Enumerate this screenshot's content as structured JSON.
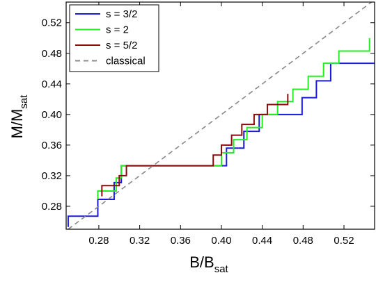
{
  "chart_data": {
    "type": "step-line",
    "x_label": "B/B",
    "x_label_sub": "sat",
    "y_label": "M/M",
    "y_label_sub": "sat",
    "xlim": [
      0.248,
      0.55
    ],
    "ylim": [
      0.25,
      0.547
    ],
    "xticks": [
      0.28,
      0.32,
      0.36,
      {
        "value": 0.4,
        "label": "0.40"
      },
      0.44,
      0.48,
      0.52
    ],
    "yticks": [
      0.28,
      0.32,
      0.36,
      {
        "value": 0.4,
        "label": "0.40"
      },
      0.44,
      0.48,
      0.52
    ],
    "legend": "upper left",
    "series": [
      {
        "name": "s = 3/2",
        "color": "#1a1adc",
        "dash": false,
        "x": [
          0.25,
          0.25,
          0.279,
          0.279,
          0.295,
          0.295,
          0.302,
          0.302,
          0.405,
          0.405,
          0.422,
          0.422,
          0.437,
          0.437,
          0.479,
          0.479,
          0.493,
          0.493,
          0.507,
          0.507,
          0.529,
          0.529,
          0.55
        ],
        "values": [
          0.253,
          0.267,
          0.267,
          0.289,
          0.289,
          0.311,
          0.311,
          0.333,
          0.333,
          0.356,
          0.356,
          0.378,
          0.378,
          0.4,
          0.4,
          0.422,
          0.422,
          0.444,
          0.444,
          0.467,
          0.467,
          0.467,
          0.467
        ]
      },
      {
        "name": "s = 2",
        "color": "#22ee22",
        "dash": false,
        "x": [
          0.279,
          0.279,
          0.297,
          0.297,
          0.302,
          0.302,
          0.4,
          0.4,
          0.412,
          0.412,
          0.425,
          0.425,
          0.44,
          0.44,
          0.455,
          0.455,
          0.47,
          0.47,
          0.485,
          0.485,
          0.5,
          0.5,
          0.515,
          0.515,
          0.53,
          0.53,
          0.545,
          0.545
        ],
        "values": [
          0.289,
          0.3,
          0.3,
          0.317,
          0.317,
          0.333,
          0.333,
          0.35,
          0.35,
          0.367,
          0.367,
          0.383,
          0.383,
          0.4,
          0.4,
          0.417,
          0.417,
          0.433,
          0.433,
          0.45,
          0.45,
          0.467,
          0.467,
          0.483,
          0.483,
          0.483,
          0.483,
          0.5
        ]
      },
      {
        "name": "s = 5/2",
        "color": "#8b0a0a",
        "dash": false,
        "x": [
          0.283,
          0.283,
          0.3,
          0.3,
          0.307,
          0.307,
          0.392,
          0.392,
          0.4,
          0.4,
          0.41,
          0.41,
          0.42,
          0.42,
          0.432,
          0.432,
          0.445,
          0.445,
          0.465,
          0.465
        ],
        "values": [
          0.293,
          0.307,
          0.307,
          0.32,
          0.32,
          0.333,
          0.333,
          0.347,
          0.347,
          0.36,
          0.36,
          0.373,
          0.373,
          0.387,
          0.387,
          0.4,
          0.4,
          0.413,
          0.413,
          0.427
        ]
      },
      {
        "name": "classical",
        "color": "#888888",
        "dash": true,
        "x": [
          0.25,
          0.547
        ],
        "values": [
          0.25,
          0.547
        ]
      }
    ]
  }
}
